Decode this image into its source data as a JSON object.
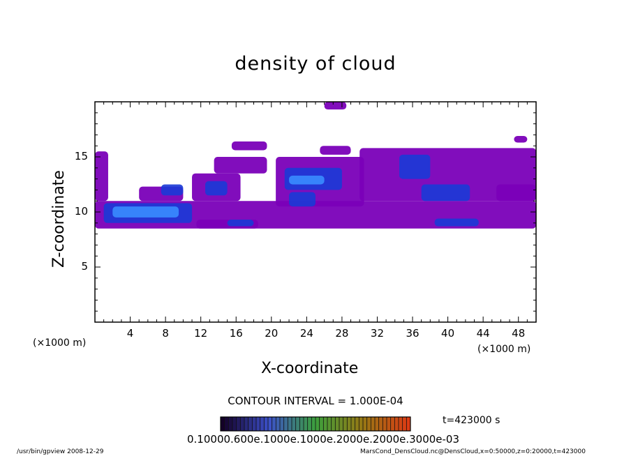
{
  "chart_data": {
    "type": "heatmap",
    "title": "density of cloud",
    "xlabel": "X-coordinate",
    "ylabel": "Z-coordinate",
    "x_unit": "(×1000 m)",
    "x_unit_right": "(×1000 m)",
    "xlim": [
      0,
      50
    ],
    "ylim": [
      0,
      20
    ],
    "x_ticks": [
      "4",
      "8",
      "12",
      "16",
      "20",
      "24",
      "28",
      "32",
      "36",
      "40",
      "44",
      "48"
    ],
    "y_ticks": [
      "5",
      "10",
      "15"
    ],
    "contour_interval": "CONTOUR INTERVAL = 1.000E-04",
    "time": "t=423000 s",
    "colorbar_labels": "0.10000.600e.1000e.1000e.2000e.2000e.3000e-03",
    "colors": {
      "low": "#7a00b8",
      "mid": "#1a3ad6",
      "high": "#3a8cff"
    },
    "regions": [
      {
        "x0": 0.0,
        "x1": 50.0,
        "z0": 8.5,
        "z1": 11.0,
        "level": 1
      },
      {
        "x0": 0.0,
        "x1": 1.5,
        "z0": 11.0,
        "z1": 15.5,
        "level": 1
      },
      {
        "x0": 1.0,
        "x1": 11.0,
        "z0": 9.0,
        "z1": 10.8,
        "level": 2
      },
      {
        "x0": 2.0,
        "x1": 9.5,
        "z0": 9.5,
        "z1": 10.5,
        "level": 3
      },
      {
        "x0": 5.0,
        "x1": 10.0,
        "z0": 11.0,
        "z1": 12.3,
        "level": 1
      },
      {
        "x0": 7.5,
        "x1": 10.0,
        "z0": 11.5,
        "z1": 12.5,
        "level": 2
      },
      {
        "x0": 11.5,
        "x1": 18.5,
        "z0": 8.5,
        "z1": 9.3,
        "level": 1
      },
      {
        "x0": 15.0,
        "x1": 18.0,
        "z0": 8.7,
        "z1": 9.3,
        "level": 2
      },
      {
        "x0": 11.0,
        "x1": 16.5,
        "z0": 11.0,
        "z1": 13.5,
        "level": 1
      },
      {
        "x0": 12.5,
        "x1": 15.0,
        "z0": 11.5,
        "z1": 12.8,
        "level": 2
      },
      {
        "x0": 13.5,
        "x1": 19.5,
        "z0": 13.5,
        "z1": 15.0,
        "level": 1
      },
      {
        "x0": 15.5,
        "x1": 19.5,
        "z0": 15.6,
        "z1": 16.4,
        "level": 1
      },
      {
        "x0": 20.5,
        "x1": 30.5,
        "z0": 10.5,
        "z1": 15.0,
        "level": 1
      },
      {
        "x0": 21.5,
        "x1": 28.0,
        "z0": 12.0,
        "z1": 14.0,
        "level": 2
      },
      {
        "x0": 22.0,
        "x1": 26.0,
        "z0": 12.5,
        "z1": 13.3,
        "level": 3
      },
      {
        "x0": 22.0,
        "x1": 25.0,
        "z0": 10.5,
        "z1": 11.8,
        "level": 2
      },
      {
        "x0": 25.5,
        "x1": 29.0,
        "z0": 15.2,
        "z1": 16.0,
        "level": 1
      },
      {
        "x0": 30.0,
        "x1": 50.0,
        "z0": 11.0,
        "z1": 15.8,
        "level": 1
      },
      {
        "x0": 34.5,
        "x1": 38.0,
        "z0": 13.0,
        "z1": 15.2,
        "level": 2
      },
      {
        "x0": 37.0,
        "x1": 42.5,
        "z0": 11.0,
        "z1": 12.5,
        "level": 2
      },
      {
        "x0": 45.5,
        "x1": 50.0,
        "z0": 11.0,
        "z1": 12.5,
        "level": 1
      },
      {
        "x0": 38.5,
        "x1": 43.5,
        "z0": 8.7,
        "z1": 9.4,
        "level": 2
      },
      {
        "x0": 26.0,
        "x1": 28.5,
        "z0": 19.3,
        "z1": 20.0,
        "level": 1
      },
      {
        "x0": 47.5,
        "x1": 49.0,
        "z0": 16.3,
        "z1": 16.9,
        "level": 1
      }
    ]
  },
  "footer": {
    "left": "/usr/bin/gpview   2008-12-29",
    "right": "MarsCond_DensCloud.nc@DensCloud,x=0:50000,z=0:20000,t=423000"
  }
}
